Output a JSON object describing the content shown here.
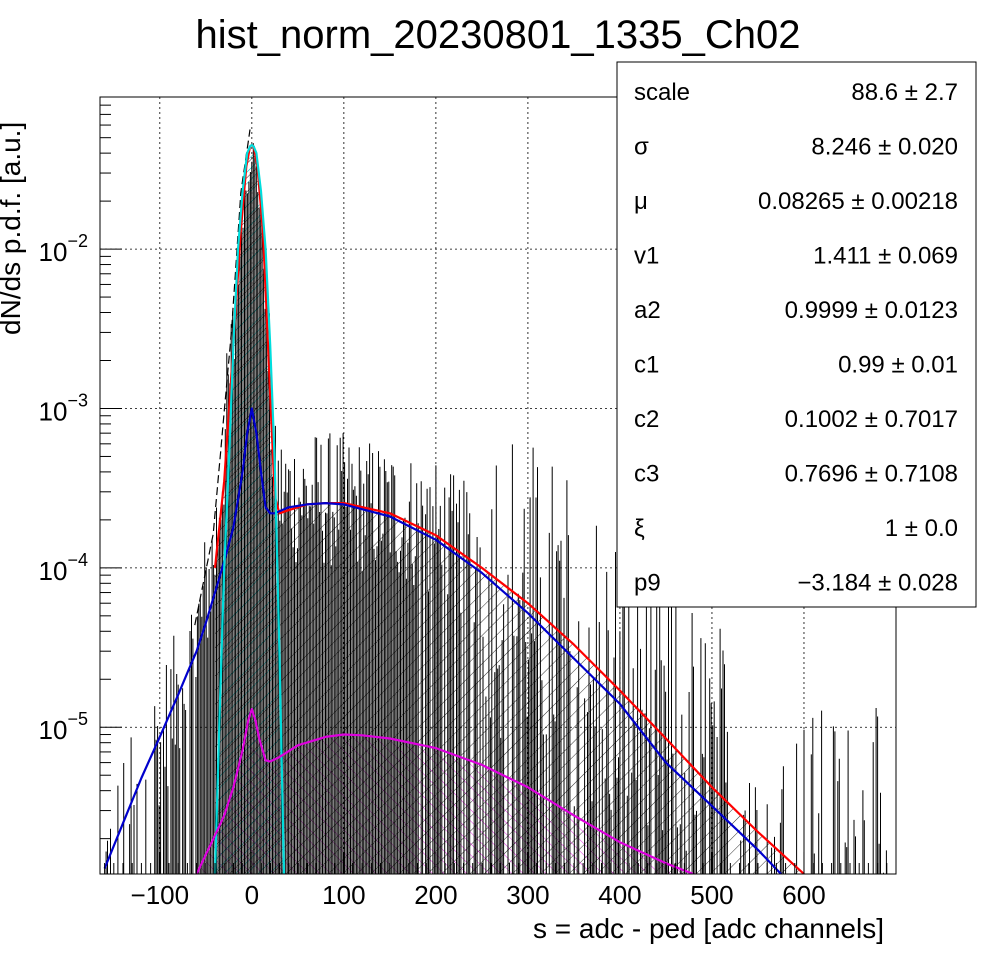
{
  "chart_data": {
    "type": "line",
    "title": "hist_norm_20230801_1335_Ch02",
    "xlabel": "s = adc - ped [adc channels]",
    "ylabel": "dN/ds p.d.f. [a.u.]",
    "xlim": [
      -165,
      700
    ],
    "ylim": [
      1.2e-06,
      0.09
    ],
    "yscale": "log",
    "grid": true,
    "x_ticks": [
      -100,
      0,
      100,
      200,
      300,
      400,
      500,
      600
    ],
    "x_tick_labels": [
      "−100",
      "0",
      "100",
      "200",
      "300",
      "400",
      "500",
      "600"
    ],
    "y_ticks": [
      1e-05,
      0.0001,
      0.001,
      0.01
    ],
    "y_tick_labels": [
      {
        "base": "10",
        "exp": "−5"
      },
      {
        "base": "10",
        "exp": "−4"
      },
      {
        "base": "10",
        "exp": "−3"
      },
      {
        "base": "10",
        "exp": "−2"
      }
    ],
    "series": [
      {
        "color": "#ff0000",
        "x": [
          -40,
          -30,
          -20,
          -12,
          -6,
          -2,
          0,
          2,
          6,
          12,
          16,
          20,
          25,
          30,
          40,
          60,
          80,
          100,
          150,
          200,
          250,
          300,
          350,
          400,
          450,
          500,
          550,
          600
        ],
        "y": [
          0.0001,
          0.00035,
          0.0025,
          0.013,
          0.033,
          0.044,
          0.045,
          0.044,
          0.033,
          0.013,
          0.004,
          0.0012,
          0.00028,
          0.00022,
          0.00023,
          0.00025,
          0.000255,
          0.000255,
          0.00022,
          0.00016,
          0.0001,
          6e-05,
          3.3e-05,
          1.7e-05,
          8.5e-06,
          4.2e-06,
          2.2e-06,
          1.2e-06
        ]
      },
      {
        "color": "#0000cc",
        "x": [
          -160,
          -140,
          -120,
          -100,
          -80,
          -70,
          -60,
          -50,
          -40,
          -30,
          -20,
          -10,
          -5,
          0,
          5,
          10,
          15,
          20,
          25,
          40,
          60,
          80,
          100,
          150,
          200,
          250,
          300,
          350,
          400,
          450,
          500,
          550,
          575
        ],
        "y": [
          1.3e-06,
          2.5e-06,
          4.8e-06,
          8.7e-06,
          1.6e-05,
          2.2e-05,
          3e-05,
          4.5e-05,
          7e-05,
          0.00011,
          0.00018,
          0.0004,
          0.0007,
          0.001,
          0.0007,
          0.0004,
          0.00024,
          0.00022,
          0.00022,
          0.00024,
          0.00025,
          0.000255,
          0.00025,
          0.00021,
          0.00015,
          9.3e-05,
          5.2e-05,
          2.7e-05,
          1.4e-05,
          6e-06,
          3.2e-06,
          1.7e-06,
          1.2e-06
        ]
      },
      {
        "color": "#00dddd",
        "x": [
          -40,
          -35,
          -30,
          -25,
          -20,
          -15,
          -10,
          -5,
          -2,
          0,
          2,
          5,
          10,
          15,
          20,
          25,
          30,
          35
        ],
        "y": [
          1.2e-06,
          1.2e-05,
          0.0001,
          0.00045,
          0.0025,
          0.01,
          0.023,
          0.04,
          0.044,
          0.045,
          0.044,
          0.04,
          0.023,
          0.01,
          0.0025,
          0.00045,
          3e-05,
          1.2e-06
        ]
      },
      {
        "color": "#dd00dd",
        "x": [
          -60,
          -40,
          -30,
          -20,
          -10,
          -4,
          0,
          4,
          8,
          15,
          20,
          30,
          50,
          80,
          100,
          120,
          150,
          200,
          250,
          300,
          350,
          400,
          450,
          480,
          500
        ],
        "y": [
          1.2e-06,
          2.1e-06,
          2.8e-06,
          4.2e-06,
          7.2e-06,
          1.1e-05,
          1.3e-05,
          1.1e-05,
          8.5e-06,
          6.2e-06,
          6.1e-06,
          6.5e-06,
          7.7e-06,
          8.7e-06,
          9e-06,
          8.9e-06,
          8.5e-06,
          7.4e-06,
          5.8e-06,
          4.2e-06,
          2.8e-06,
          1.9e-06,
          1.4e-06,
          1.2e-06,
          1.1e-06
        ]
      }
    ],
    "histogram": {
      "color": "#000000",
      "profile_x": [
        -160,
        -140,
        -120,
        -100,
        -80,
        -60,
        -40,
        -20,
        -10,
        0,
        10,
        20,
        25,
        40,
        60,
        80,
        100,
        150,
        200,
        250,
        300,
        350,
        400,
        450,
        500,
        550,
        600,
        650,
        690
      ],
      "profile_y": [
        1.2e-06,
        2.5e-06,
        4.8e-06,
        8.7e-06,
        1.6e-05,
        3.5e-05,
        0.00013,
        0.0025,
        0.018,
        0.045,
        0.018,
        0.0012,
        0.0003,
        0.00028,
        0.00028,
        0.00027,
        0.00026,
        0.00023,
        0.00017,
        0.00011,
        6.5e-05,
        3.5e-05,
        1.8e-05,
        9e-06,
        4.8e-06,
        2.5e-06,
        1.3e-06,
        1.2e-06,
        1.2e-06
      ]
    },
    "stats": [
      {
        "name": "scale",
        "value": "88.6 ± 2.7"
      },
      {
        "name": "σ",
        "value": "8.246 ± 0.020"
      },
      {
        "name": "μ",
        "value": "0.08265 ± 0.00218"
      },
      {
        "name": "v1",
        "value": "1.411 ± 0.069"
      },
      {
        "name": "a2",
        "value": "0.9999 ± 0.0123"
      },
      {
        "name": "c1",
        "value": "0.99 ± 0.01"
      },
      {
        "name": "c2",
        "value": "0.1002 ± 0.7017"
      },
      {
        "name": "c3",
        "value": "0.7696 ± 0.7108"
      },
      {
        "name": "ξ",
        "value": "1 ± 0.0"
      },
      {
        "name": "p9",
        "value": "−3.184 ± 0.028"
      }
    ]
  }
}
